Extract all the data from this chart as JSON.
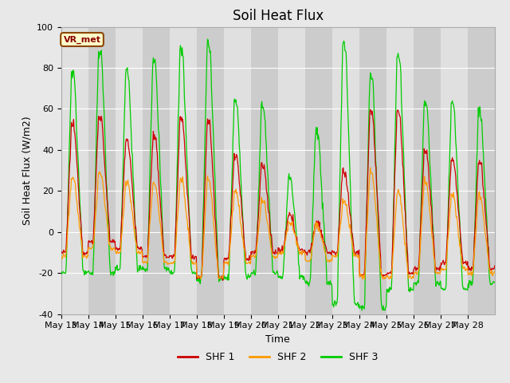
{
  "title": "Soil Heat Flux",
  "ylabel": "Soil Heat Flux (W/m2)",
  "xlabel": "Time",
  "ylim": [
    -40,
    100
  ],
  "xlim_days": 16,
  "shf1_color": "#cc0000",
  "shf2_color": "#ff9900",
  "shf3_color": "#00cc00",
  "background_color": "#e8e8e8",
  "plot_bg_color": "#e0e0e0",
  "band_color_dark": "#cccccc",
  "title_fontsize": 12,
  "axis_label_fontsize": 9,
  "tick_fontsize": 8,
  "legend_fontsize": 9,
  "vr_met_label": "VR_met",
  "start_day": 13,
  "n_days": 16,
  "points_per_day": 48,
  "yticks": [
    -40,
    -20,
    0,
    20,
    40,
    60,
    80,
    100
  ],
  "tick_day_labels": [
    "May 13",
    "May 14",
    "May 15",
    "May 16",
    "May 17",
    "May 18",
    "May 19",
    "May 20",
    "May 21",
    "May 22",
    "May 23",
    "May 24",
    "May 25",
    "May 26",
    "May 27",
    "May 28"
  ],
  "shf1_peaks": [
    53,
    58,
    46,
    47,
    56,
    55,
    38,
    33,
    8,
    5,
    30,
    60,
    60,
    41,
    36,
    35
  ],
  "shf2_peaks": [
    27,
    29,
    24,
    25,
    26,
    26,
    20,
    15,
    5,
    4,
    15,
    30,
    20,
    25,
    18,
    18
  ],
  "shf3_peaks": [
    79,
    91,
    80,
    85,
    90,
    93,
    65,
    62,
    27,
    50,
    95,
    78,
    88,
    65,
    63,
    60
  ],
  "shf1_troughs": [
    -10,
    -5,
    -8,
    -12,
    -12,
    -22,
    -13,
    -10,
    -9,
    -10,
    -10,
    -21,
    -20,
    -18,
    -15,
    -18
  ],
  "shf2_troughs": [
    -12,
    -8,
    -10,
    -15,
    -15,
    -22,
    -15,
    -12,
    -10,
    -14,
    -12,
    -22,
    -22,
    -20,
    -18,
    -20
  ],
  "shf3_troughs": [
    -20,
    -20,
    -18,
    -18,
    -20,
    -23,
    -22,
    -20,
    -22,
    -25,
    -35,
    -37,
    -28,
    -25,
    -28,
    -25
  ]
}
